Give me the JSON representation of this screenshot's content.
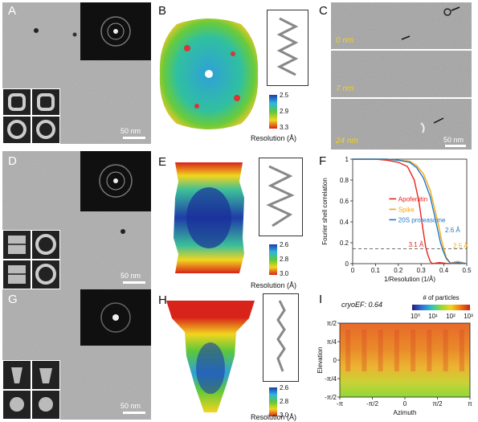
{
  "panels": {
    "A": {
      "label": "A",
      "scalebar": "50 nm"
    },
    "B": {
      "label": "B",
      "cbar_ticks": [
        "2.5",
        "2.9",
        "3.3"
      ],
      "cbar_title": "Resolution (Å)"
    },
    "C": {
      "label": "C",
      "slices": [
        "0 nm",
        "7 nm",
        "24 nm"
      ],
      "scalebar": "50 nm"
    },
    "D": {
      "label": "D",
      "scalebar": "50 nm"
    },
    "E": {
      "label": "E",
      "cbar_ticks": [
        "2.6",
        "2.8",
        "3.0"
      ],
      "cbar_title": "Resolution (Å)"
    },
    "F": {
      "label": "F"
    },
    "G": {
      "label": "G",
      "scalebar": "50 nm"
    },
    "H": {
      "label": "H",
      "cbar_ticks": [
        "2.6",
        "2.8",
        "3.0"
      ],
      "cbar_title": "Resolution (Å)"
    },
    "I": {
      "label": "I",
      "annotation": "cryoEF: 0.64",
      "cbar_title": "# of particles",
      "cbar_ticks": [
        "10⁰",
        "10¹",
        "10²",
        "10³"
      ]
    }
  },
  "chart_data": [
    {
      "type": "line",
      "xlabel": "1/Resolution (1/Å)",
      "ylabel": "Fourier shell correlation",
      "xlim": [
        0,
        0.5
      ],
      "ylim": [
        0,
        1
      ],
      "xticks": [
        "0",
        "0.1",
        "0.2",
        "0.3",
        "0.4",
        "0.5"
      ],
      "yticks": [
        "0",
        "0.2",
        "0.4",
        "0.6",
        "0.8",
        "1"
      ],
      "threshold": 0.143,
      "series": [
        {
          "name": "Apoferritin",
          "color": "#e8231c",
          "label": "3.1 Å",
          "x": [
            0,
            0.05,
            0.1,
            0.15,
            0.2,
            0.24,
            0.27,
            0.29,
            0.3,
            0.31,
            0.32,
            0.33,
            0.34,
            0.35,
            0.38,
            0.42,
            0.46,
            0.5
          ],
          "y": [
            1,
            1,
            1,
            0.99,
            0.97,
            0.93,
            0.8,
            0.6,
            0.45,
            0.3,
            0.16,
            0.08,
            0.02,
            0.0,
            0.01,
            0.0,
            0.02,
            0.0
          ]
        },
        {
          "name": "Spike",
          "color": "#f5a70f",
          "label": "2.5 Å",
          "x": [
            0,
            0.05,
            0.1,
            0.15,
            0.2,
            0.25,
            0.28,
            0.31,
            0.34,
            0.36,
            0.38,
            0.39,
            0.4,
            0.41,
            0.43,
            0.46,
            0.5
          ],
          "y": [
            1,
            1,
            1,
            1,
            0.99,
            0.98,
            0.94,
            0.86,
            0.7,
            0.52,
            0.33,
            0.22,
            0.14,
            0.06,
            0.0,
            0.02,
            0.0
          ]
        },
        {
          "name": "20S proteasome",
          "color": "#1f77c4",
          "label": "2.6 Å",
          "x": [
            0,
            0.05,
            0.1,
            0.15,
            0.2,
            0.25,
            0.28,
            0.31,
            0.34,
            0.36,
            0.375,
            0.385,
            0.395,
            0.41,
            0.43,
            0.46,
            0.5
          ],
          "y": [
            1,
            1,
            1,
            1,
            0.99,
            0.97,
            0.92,
            0.82,
            0.64,
            0.45,
            0.3,
            0.2,
            0.13,
            0.05,
            0.0,
            0.01,
            0.0
          ]
        }
      ]
    },
    {
      "type": "heatmap",
      "annotation": "cryoEF: 0.64",
      "xlabel": "Azimuth",
      "ylabel": "Elevation",
      "xticks": [
        "-π",
        "-π/2",
        "0",
        "π/2",
        "π"
      ],
      "yticks": [
        "-π/2",
        "-π/4",
        "0",
        "π/4",
        "π/2"
      ],
      "colorbar": {
        "title": "# of particles",
        "ticks": [
          "10⁰",
          "10¹",
          "10²",
          "10³"
        ]
      }
    }
  ]
}
